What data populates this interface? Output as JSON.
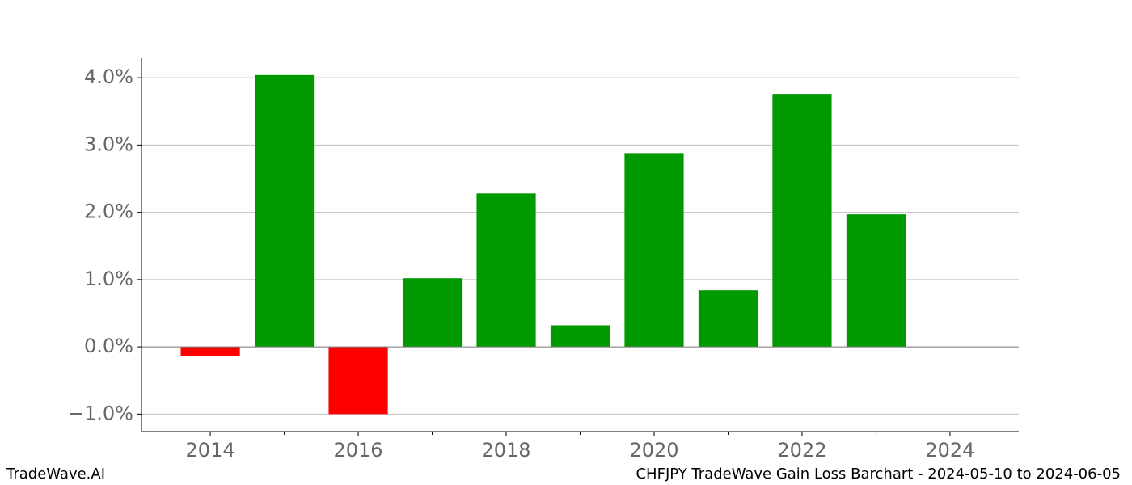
{
  "chart_data": {
    "type": "bar",
    "x": [
      2014,
      2015,
      2016,
      2017,
      2018,
      2019,
      2020,
      2021,
      2022,
      2023
    ],
    "values": [
      -0.14,
      4.04,
      -1.0,
      1.02,
      2.28,
      0.32,
      2.88,
      0.84,
      3.76,
      1.97
    ],
    "positive_color": "#009900",
    "negative_color": "#ff0000",
    "xlim": [
      2013.07,
      2024.93
    ],
    "xticks": [
      2014,
      2016,
      2018,
      2020,
      2022,
      2024
    ],
    "x_minor_ticks": [
      2015,
      2017,
      2019,
      2021,
      2023
    ],
    "ylim": [
      -1.26,
      4.29
    ],
    "yticks": [
      {
        "value": -1,
        "label": "−1.0%"
      },
      {
        "value": 0,
        "label": "0.0%"
      },
      {
        "value": 1,
        "label": "1.0%"
      },
      {
        "value": 2,
        "label": "2.0%"
      },
      {
        "value": 3,
        "label": "3.0%"
      },
      {
        "value": 4,
        "label": "4.0%"
      }
    ],
    "grid": true,
    "footer_left": "TradeWave.AI",
    "footer_right": "CHFJPY TradeWave Gain Loss Barchart - 2024-05-10 to 2024-06-05"
  }
}
